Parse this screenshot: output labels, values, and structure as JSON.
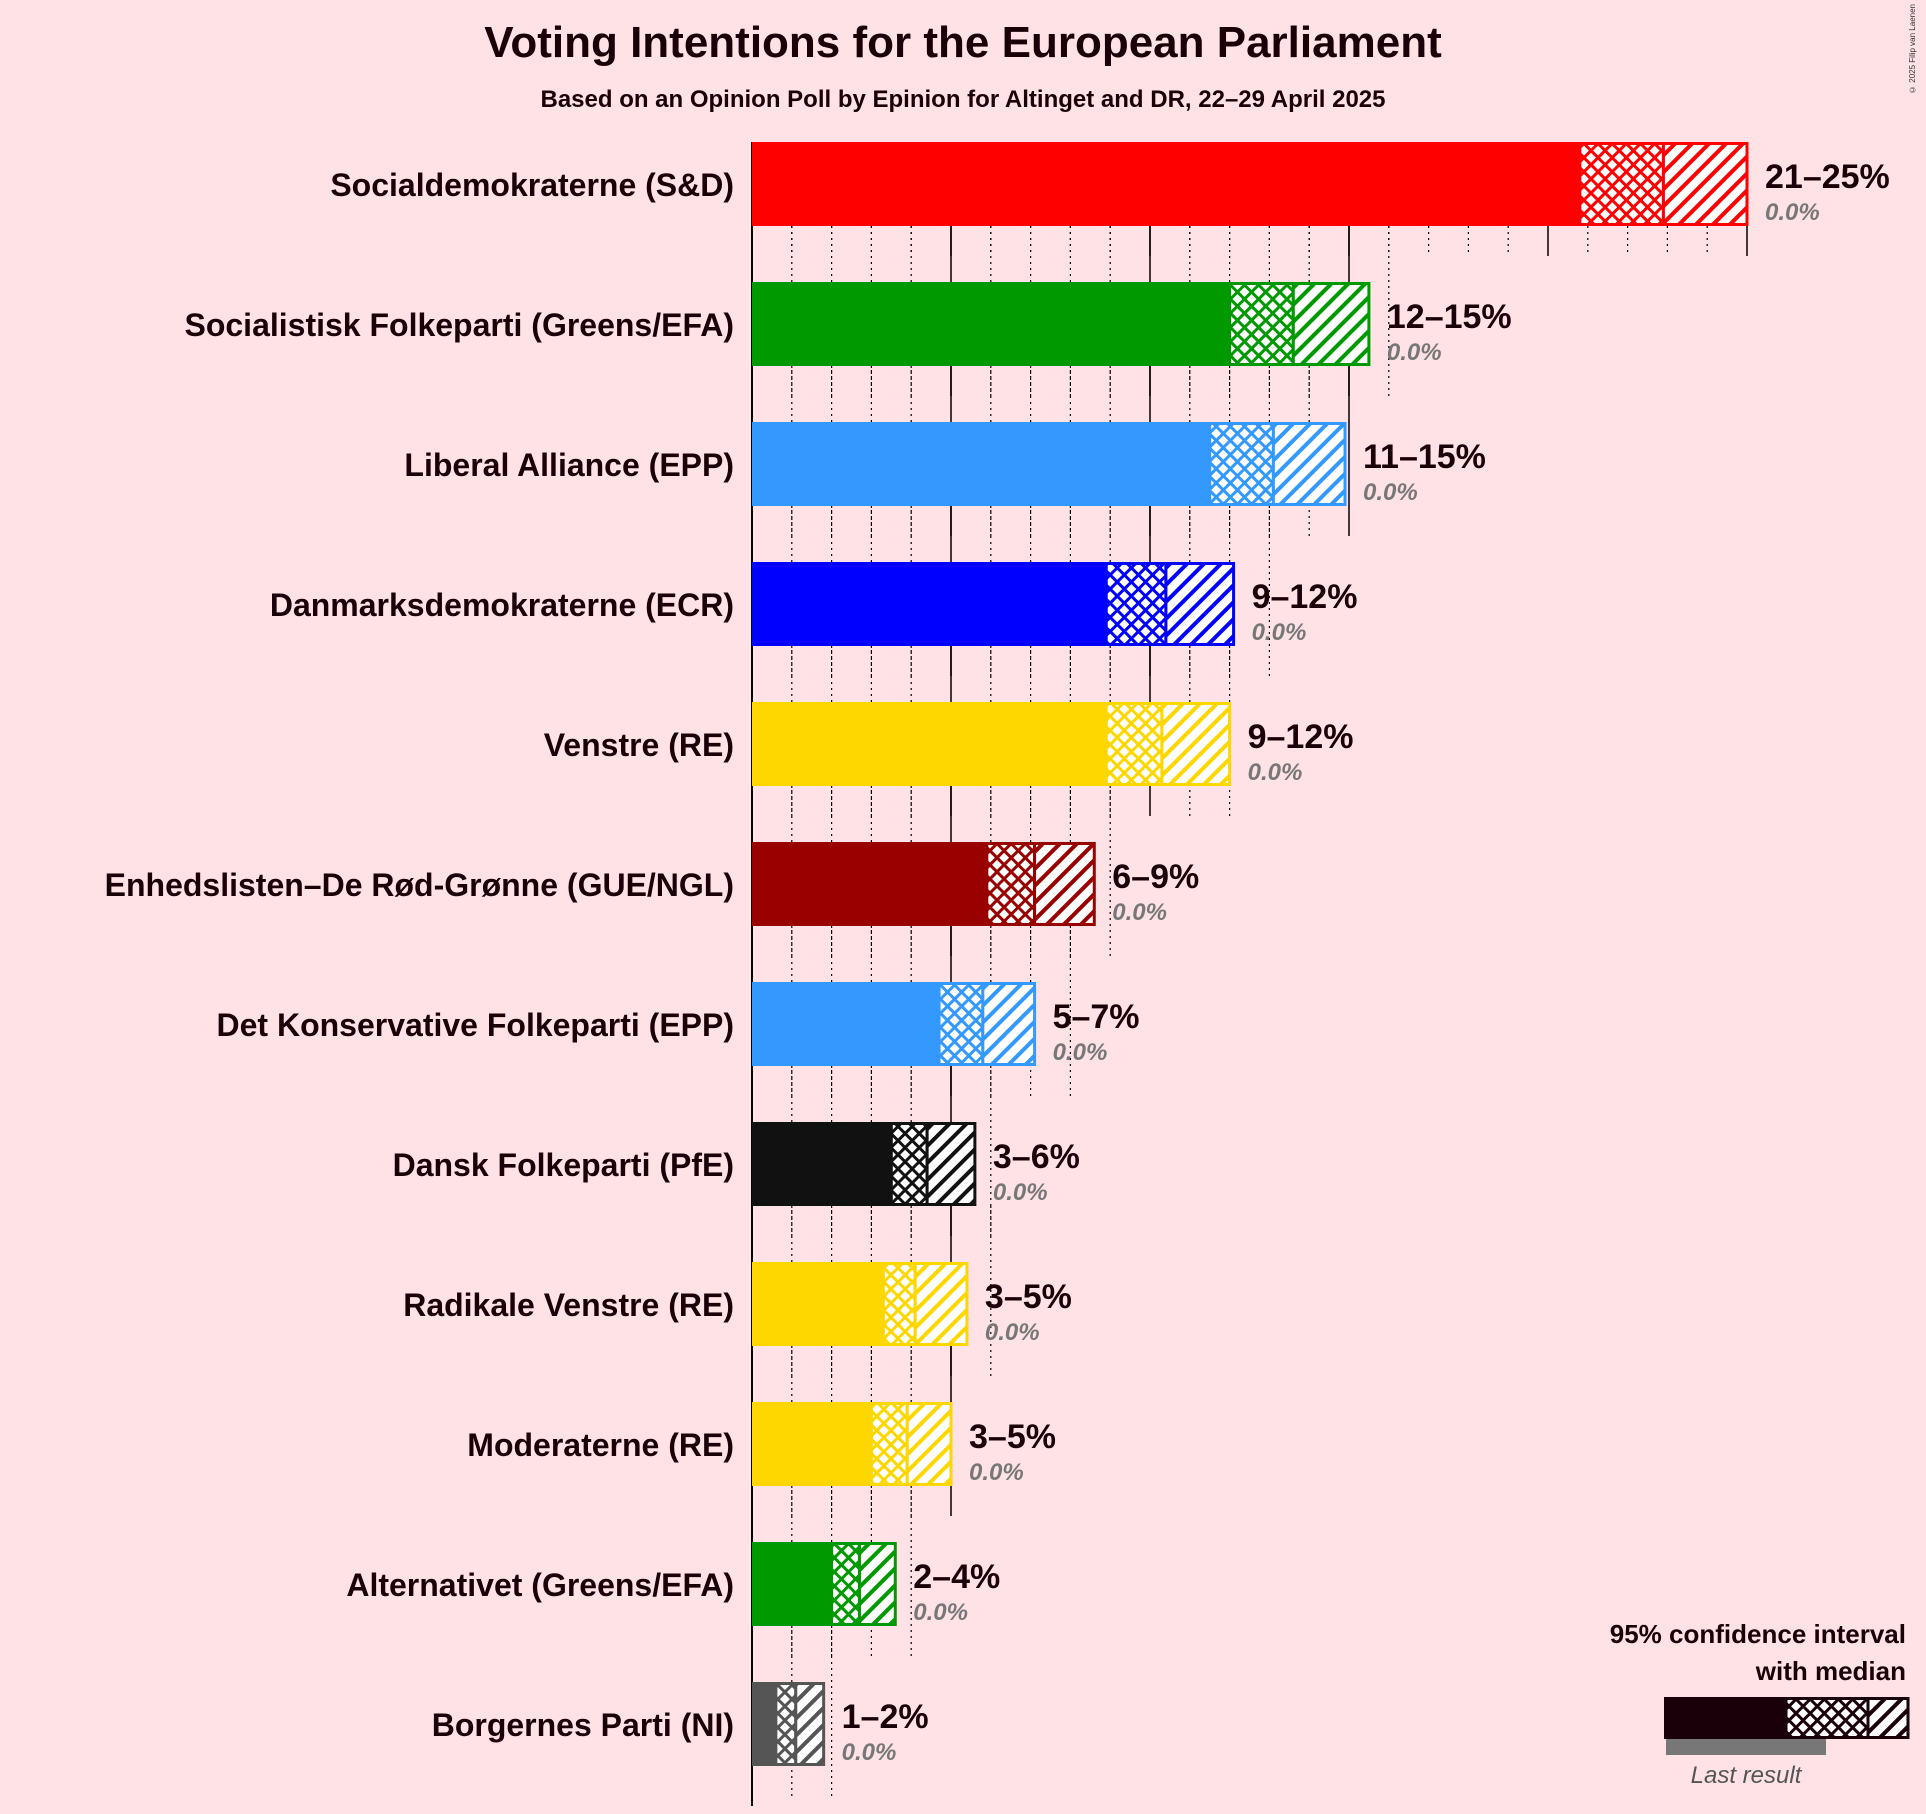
{
  "title": "Voting Intentions for the European Parliament",
  "subtitle": "Based on an Opinion Poll by Epinion for Altinget and DR, 22–29 April 2025",
  "copyright": "© 2025 Filip van Laenen",
  "legend": {
    "title_line1": "95% confidence interval",
    "title_line2": "with median",
    "last_result": "Last result"
  },
  "chart_data": {
    "type": "bar",
    "orientation": "horizontal",
    "title": "Voting Intentions for the European Parliament",
    "subtitle": "Based on an Opinion Poll by Epinion for Altinget and DR, 22–29 April 2025",
    "xlim": [
      0,
      25
    ],
    "grid": "vertical lines, major every 5%, minor dotted every 1%",
    "legend_placement": "bottom-right",
    "parties": [
      {
        "name": "Socialdemokraterne (S&D)",
        "color": "#FF0000",
        "low": 20.8,
        "median": 22.9,
        "high": 25.0,
        "range_label": "21–25%",
        "last_result": "0.0%"
      },
      {
        "name": "Socialistisk Folkeparti (Greens/EFA)",
        "color": "#009900",
        "low": 12.0,
        "median": 13.6,
        "high": 15.5,
        "range_label": "12–15%",
        "last_result": "0.0%"
      },
      {
        "name": "Liberal Alliance (EPP)",
        "color": "#3399FF",
        "low": 11.5,
        "median": 13.1,
        "high": 14.9,
        "range_label": "11–15%",
        "last_result": "0.0%"
      },
      {
        "name": "Danmarksdemokraterne (ECR)",
        "color": "#0000FF",
        "low": 8.9,
        "median": 10.4,
        "high": 12.1,
        "range_label": "9–12%",
        "last_result": "0.0%"
      },
      {
        "name": "Venstre (RE)",
        "color": "#FFD700",
        "low": 8.9,
        "median": 10.3,
        "high": 12.0,
        "range_label": "9–12%",
        "last_result": "0.0%"
      },
      {
        "name": "Enhedslisten–De Rød-Grønne (GUE/NGL)",
        "color": "#990000",
        "low": 5.9,
        "median": 7.1,
        "high": 8.6,
        "range_label": "6–9%",
        "last_result": "0.0%"
      },
      {
        "name": "Det Konservative Folkeparti (EPP)",
        "color": "#3399FF",
        "low": 4.7,
        "median": 5.8,
        "high": 7.1,
        "range_label": "5–7%",
        "last_result": "0.0%"
      },
      {
        "name": "Dansk Folkeparti (PfE)",
        "color": "#111111",
        "low": 3.5,
        "median": 4.4,
        "high": 5.6,
        "range_label": "3–6%",
        "last_result": "0.0%"
      },
      {
        "name": "Radikale Venstre (RE)",
        "color": "#FFD700",
        "low": 3.3,
        "median": 4.1,
        "high": 5.4,
        "range_label": "3–5%",
        "last_result": "0.0%"
      },
      {
        "name": "Moderaterne (RE)",
        "color": "#FFD700",
        "low": 3.0,
        "median": 3.9,
        "high": 5.0,
        "range_label": "3–5%",
        "last_result": "0.0%"
      },
      {
        "name": "Alternativet (Greens/EFA)",
        "color": "#009900",
        "low": 2.0,
        "median": 2.7,
        "high": 3.6,
        "range_label": "2–4%",
        "last_result": "0.0%"
      },
      {
        "name": "Borgernes Parti (NI)",
        "color": "#555555",
        "low": 0.6,
        "median": 1.1,
        "high": 1.8,
        "range_label": "1–2%",
        "last_result": "0.0%"
      }
    ]
  }
}
